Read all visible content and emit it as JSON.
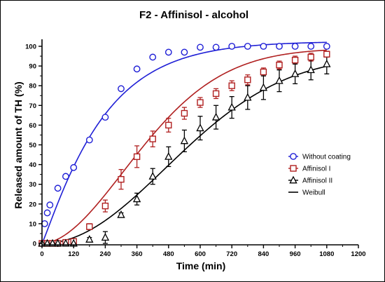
{
  "chart_data": {
    "type": "scatter",
    "title": "F2 - Affinisol - alcohol",
    "xlabel": "Time (min)",
    "ylabel": "Released amount of TH (%)",
    "xlim": [
      0,
      1200
    ],
    "ylim": [
      0,
      105
    ],
    "xticks": [
      0,
      120,
      240,
      360,
      480,
      600,
      720,
      840,
      960,
      1080,
      1200
    ],
    "yticks": [
      0,
      10,
      20,
      30,
      40,
      50,
      60,
      70,
      80,
      90,
      100
    ],
    "grid": false,
    "legend_position": "right",
    "series": [
      {
        "name": "Without coating",
        "marker": "circle",
        "color": "#1f1fd6",
        "x": [
          0,
          10,
          20,
          30,
          60,
          90,
          120,
          180,
          240,
          300,
          360,
          420,
          480,
          540,
          600,
          660,
          720,
          780,
          840,
          900,
          960,
          1020,
          1080
        ],
        "y": [
          0,
          10,
          15.5,
          19.5,
          28,
          34,
          38.5,
          52.5,
          64,
          78.5,
          88.5,
          94.5,
          97,
          97,
          99.5,
          99.5,
          100,
          100,
          100,
          100,
          100,
          100,
          100
        ],
        "err": []
      },
      {
        "name": "Affinisol I",
        "marker": "square",
        "color": "#b02020",
        "x": [
          0,
          20,
          40,
          60,
          90,
          120,
          180,
          240,
          300,
          360,
          420,
          480,
          540,
          600,
          660,
          720,
          780,
          840,
          900,
          960,
          1020,
          1080
        ],
        "y": [
          0,
          0,
          0,
          0,
          0.5,
          1,
          8.5,
          19,
          32.5,
          44,
          53,
          60,
          66,
          71.5,
          76,
          80,
          83,
          87,
          90.5,
          93,
          94.5,
          96
        ],
        "err": [
          0,
          0,
          0,
          0,
          0.5,
          1,
          1.5,
          3,
          5,
          5.5,
          4,
          3.5,
          3,
          2.5,
          2.5,
          2.5,
          2.5,
          2,
          2,
          2,
          2,
          1.5
        ]
      },
      {
        "name": "Affinisol II",
        "marker": "triangle",
        "color": "#000000",
        "x": [
          0,
          20,
          40,
          60,
          90,
          120,
          180,
          240,
          300,
          360,
          420,
          480,
          540,
          600,
          660,
          720,
          780,
          840,
          900,
          960,
          1020,
          1080
        ],
        "y": [
          0,
          0,
          0,
          0,
          0,
          0,
          2,
          3,
          14.5,
          22.5,
          34,
          44,
          52,
          58.5,
          64,
          69,
          74,
          79,
          82.5,
          86,
          88,
          91
        ],
        "err": [
          0,
          0,
          0,
          0,
          0,
          0,
          1,
          3,
          1,
          3,
          4,
          5,
          5.5,
          6,
          6,
          5.5,
          6,
          6,
          5.5,
          5,
          5,
          5
        ]
      }
    ],
    "fits": [
      {
        "name": "Weibull",
        "color": "#1f1fd6",
        "model": {
          "fmax": 102.5,
          "td": 235,
          "b": 1.1,
          "ti": 0
        }
      },
      {
        "name": "Weibull",
        "color": "#b02020",
        "model": {
          "fmax": 99,
          "td": 470,
          "b": 1.85,
          "ti": 0
        }
      },
      {
        "name": "Weibull",
        "color": "#000000",
        "model": {
          "fmax": 95.5,
          "td": 650,
          "b": 2.05,
          "ti": 0
        }
      }
    ],
    "legend": [
      {
        "label": "Without coating",
        "symbol": "circle",
        "color": "#1f1fd6"
      },
      {
        "label": "Affinisol I",
        "symbol": "square",
        "color": "#b02020"
      },
      {
        "label": "Affinisol II",
        "symbol": "triangle",
        "color": "#000000"
      },
      {
        "label": "Weibull",
        "symbol": "line",
        "color": "#000000"
      }
    ]
  }
}
